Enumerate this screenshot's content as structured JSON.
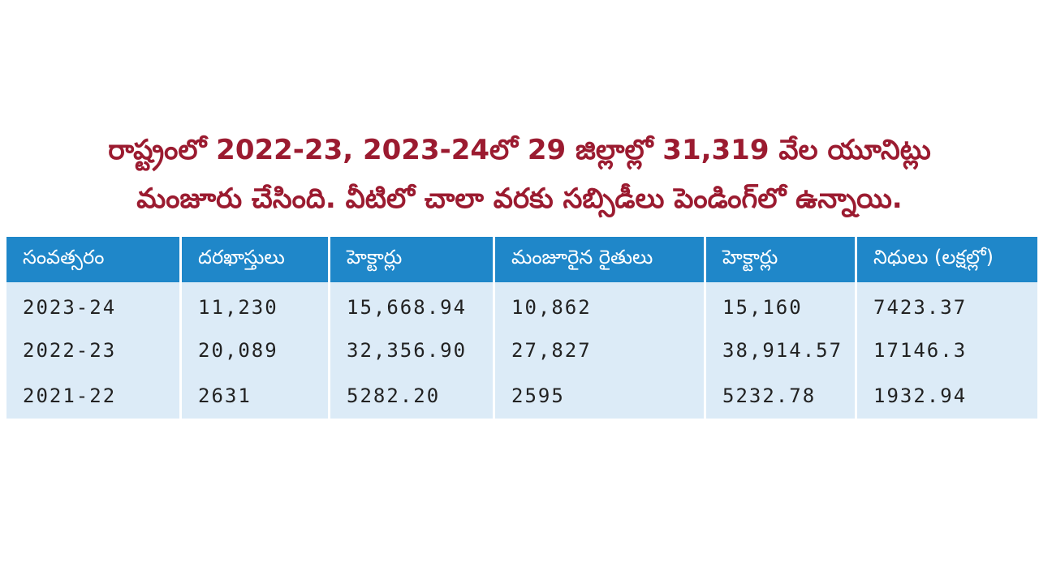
{
  "headline": {
    "lines": [
      "రాష్ట్రంలో 2022-23, 2023-24లో  29 జిల్లాల్లో 31,319 వేల యూనిట్లు",
      "మంజూరు చేసింది. వీటిలో చాలా వరకు సబ్సిడీలు పెండింగ్‌లో ఉన్నాయి."
    ]
  },
  "table": {
    "header": [
      "సంవత్సరం",
      "దరఖాస్తులు",
      "హెక్టార్లు",
      "మంజూరైన రైతులు",
      "హెక్టార్లు",
      "నిధులు (లక్షల్లో)"
    ],
    "rows": [
      [
        "2023-24",
        "11,230",
        "15,668.94",
        "10,862",
        "15,160",
        "7423.37"
      ],
      [
        "2022-23",
        "20,089",
        "32,356.90",
        "27,827",
        "38,914.57",
        "17146.3"
      ],
      [
        "2021-22",
        "2631",
        "5282.20",
        "2595",
        "5232.78",
        "1932.94"
      ]
    ]
  }
}
